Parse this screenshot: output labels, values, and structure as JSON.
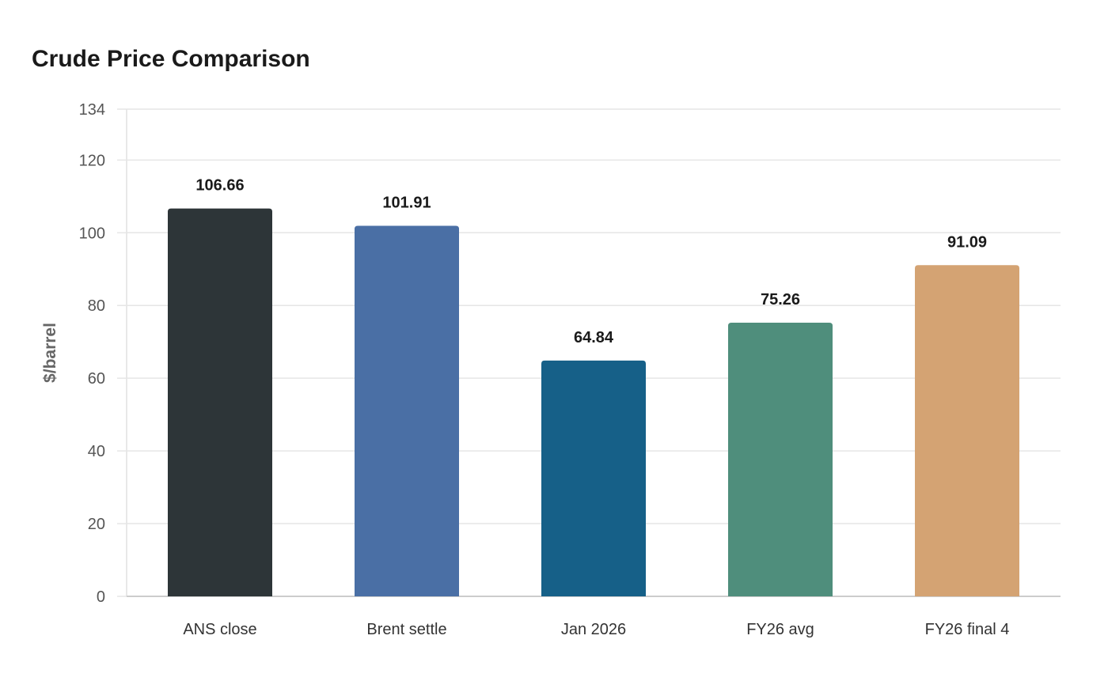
{
  "chart_data": {
    "type": "bar",
    "title": "Crude Price Comparison",
    "xlabel": "",
    "ylabel": "$/barrel",
    "categories": [
      "ANS close",
      "Brent settle",
      "Jan 2026",
      "FY26 avg",
      "FY26 final 4"
    ],
    "values": [
      106.66,
      101.91,
      64.84,
      75.26,
      91.09
    ],
    "value_labels": [
      "106.66",
      "101.91",
      "64.84",
      "75.26",
      "91.09"
    ],
    "colors": [
      "#2d3538",
      "#4a6fa5",
      "#166088",
      "#4f8e7c",
      "#d4a373"
    ],
    "ylim": [
      0,
      134
    ],
    "yticks": [
      0,
      20,
      40,
      60,
      80,
      100,
      120,
      134
    ],
    "grid": true,
    "legend": "none"
  }
}
